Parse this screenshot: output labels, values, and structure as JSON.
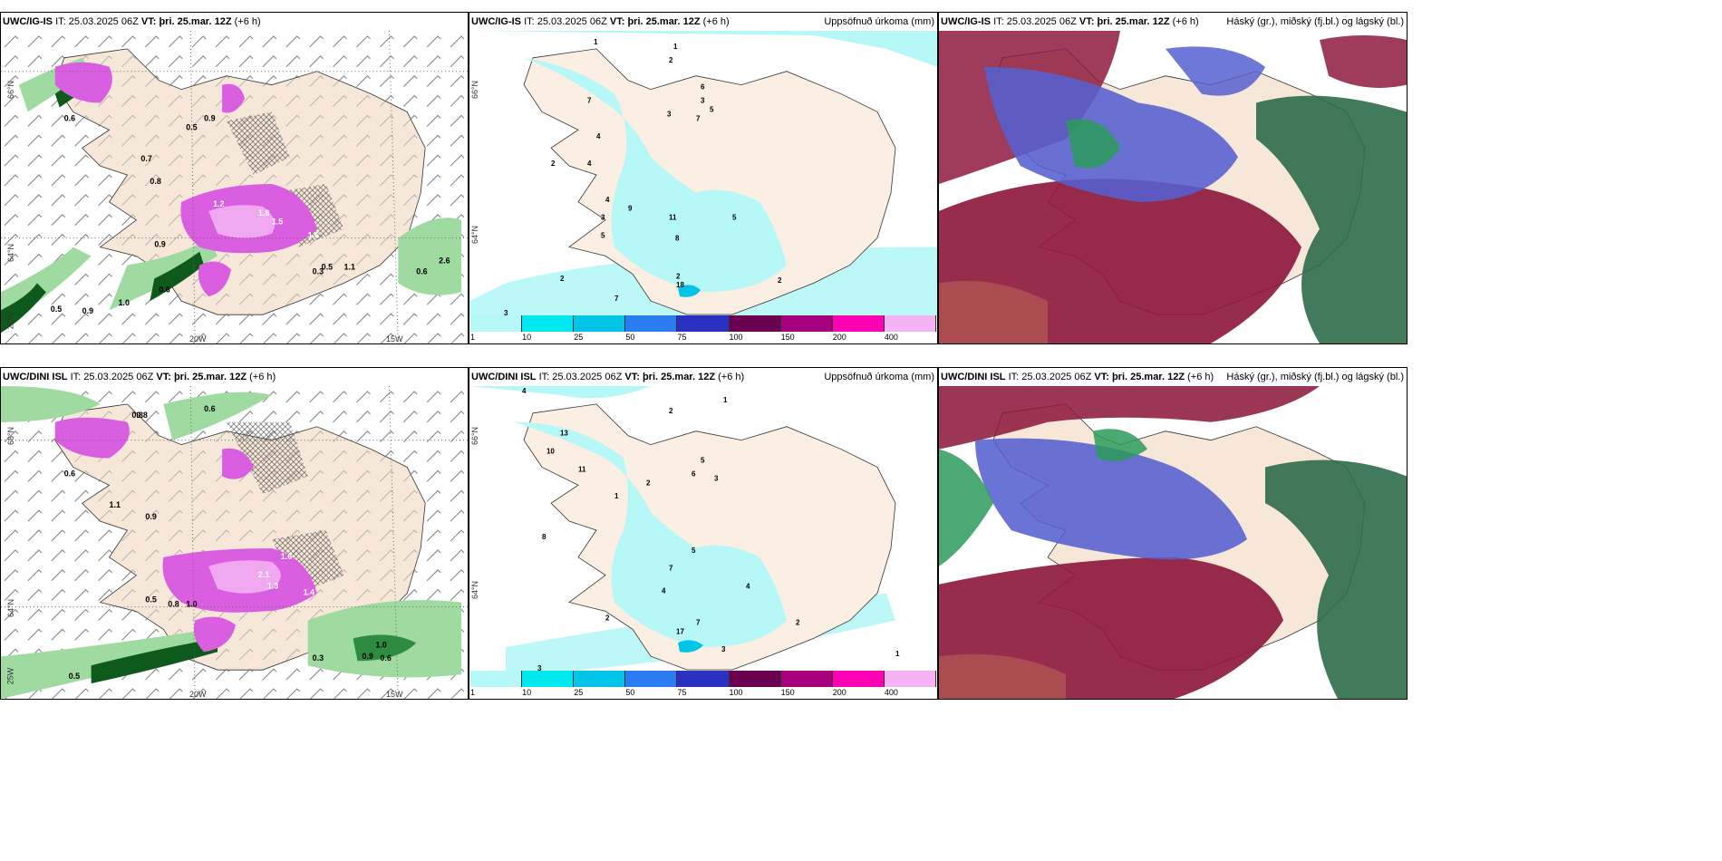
{
  "rows": [
    {
      "panels": [
        {
          "model": "UWC/IG-IS",
          "it_label": "IT:",
          "it": "25.03.2025 06Z",
          "vt_label": "VT:",
          "vt": "þri. 25.mar. 12Z",
          "lead": "(+6 h)",
          "right": ""
        },
        {
          "model": "UWC/IG-IS",
          "it_label": "IT:",
          "it": "25.03.2025 06Z",
          "vt_label": "VT:",
          "vt": "þri. 25.mar. 12Z",
          "lead": "(+6 h)",
          "right": "Uppsöfnuð úrkoma (mm)"
        },
        {
          "model": "UWC/IG-IS",
          "it_label": "IT:",
          "it": "25.03.2025 06Z",
          "vt_label": "VT:",
          "vt": "þri. 25.mar. 12Z",
          "lead": "(+6 h)",
          "right": "Háský (gr.), miðský (fj.bl.) og lágský (bl.)"
        }
      ]
    },
    {
      "panels": [
        {
          "model": "UWC/DINI ISL",
          "it_label": "IT:",
          "it": "25.03.2025 06Z",
          "vt_label": "VT:",
          "vt": "þri. 25.mar. 12Z",
          "lead": "(+6 h)",
          "right": ""
        },
        {
          "model": "UWC/DINI ISL",
          "it_label": "IT:",
          "it": "25.03.2025 06Z",
          "vt_label": "VT:",
          "vt": "þri. 25.mar. 12Z",
          "lead": "(+6 h)",
          "right": "Uppsöfnuð úrkoma (mm)"
        },
        {
          "model": "UWC/DINI ISL",
          "it_label": "IT:",
          "it": "25.03.2025 06Z",
          "vt_label": "VT:",
          "vt": "þri. 25.mar. 12Z",
          "lead": "(+6 h)",
          "right": "Háský (gr.), miðský (fj.bl.) og lágský (bl.)"
        }
      ]
    }
  ],
  "axes": {
    "lat_top": "66°N",
    "lat_bot": "64°N",
    "lat_corner": "25W",
    "lon_left": "20W",
    "lon_right": "15W"
  },
  "precip_colorbar": {
    "ticks": [
      "1",
      "10",
      "25",
      "50",
      "75",
      "100",
      "150",
      "200",
      "400"
    ],
    "colors": [
      "#b6f7f7",
      "#00e8ef",
      "#00c4e8",
      "#2a7cf0",
      "#2b2fc2",
      "#6b0050",
      "#a6007e",
      "#ff00b4",
      "#f4b2f4"
    ]
  },
  "colors": {
    "land": "#f6e7d8",
    "land_precip_panel": "#fbeee2",
    "sea": "#ffffff",
    "snow_pink": "#d95fe0",
    "snow_light": "#f0a8f0",
    "rain_green": "#9fdba0",
    "rain_dark": "#0e5a1d",
    "precip_cyan": "#b6f7f7",
    "cloud_high": "#2c9b5a",
    "cloud_mid": "#5560d0",
    "cloud_low": "#8e1a3e",
    "ocean_dark": "#2d6b4a"
  },
  "wind_labels_top": [
    "0.5",
    "0.9",
    "0.6",
    "1.2",
    "1.8",
    "1.5",
    "1.6",
    "0.6",
    "0.9",
    "0.3",
    "1.0",
    "0.5",
    "0.9",
    "0.6",
    "0.8",
    "0.7",
    "1.1",
    "0.5",
    "2.6"
  ],
  "wind_labels_bot": [
    "0.5",
    "0.6",
    "0.8",
    "1.1",
    "0.8",
    "1.0",
    "2.1",
    "1.3",
    "1.6",
    "1.4",
    "0.6",
    "0.5",
    "0.9",
    "1.0",
    "0.6",
    "0.3",
    "0.8",
    "0.9"
  ],
  "precip_labels_top": [
    "1",
    "2",
    "1",
    "3",
    "3",
    "5",
    "6",
    "4",
    "7",
    "2",
    "4",
    "3",
    "5",
    "9",
    "4",
    "11",
    "8",
    "2",
    "5",
    "2",
    "7",
    "18",
    "2",
    "3",
    "7"
  ],
  "precip_labels_bot": [
    "4",
    "1",
    "2",
    "10",
    "11",
    "13",
    "5",
    "3",
    "6",
    "7",
    "2",
    "5",
    "1",
    "4",
    "8",
    "2",
    "7",
    "17",
    "3",
    "2",
    "1",
    "3",
    "4"
  ]
}
